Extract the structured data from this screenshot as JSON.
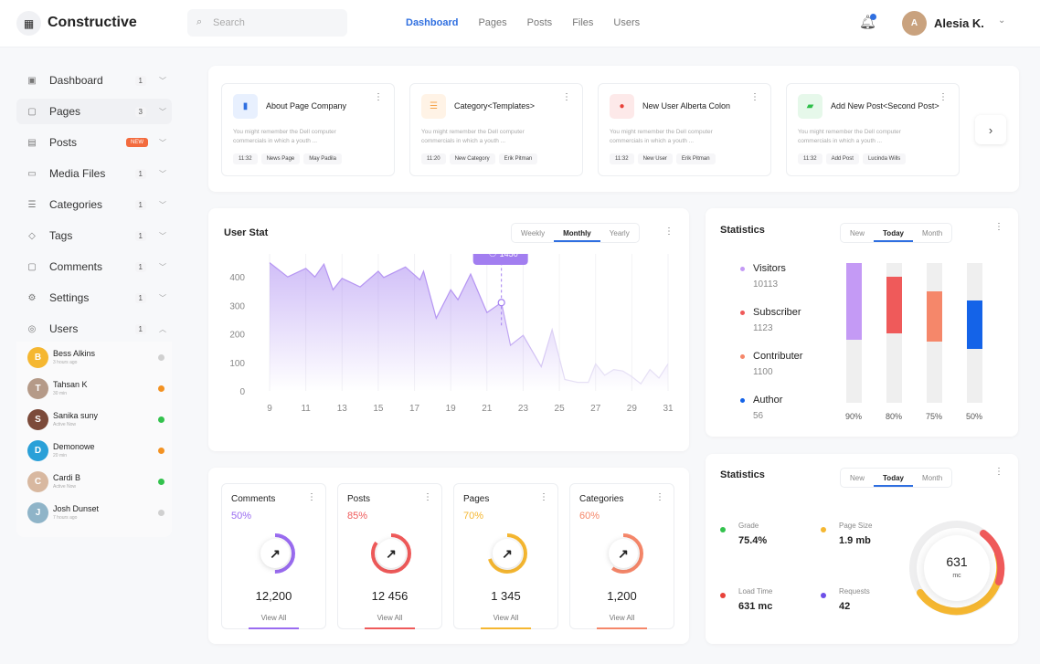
{
  "header": {
    "brand": "Constructive",
    "search_placeholder": "Search",
    "nav": [
      "Dashboard",
      "Pages",
      "Posts",
      "Files",
      "Users"
    ],
    "active_nav": "Dashboard",
    "user_name": "Alesia K."
  },
  "sidebar": {
    "items": [
      {
        "label": "Dashboard",
        "icon": "dashboard-icon",
        "count": "1"
      },
      {
        "label": "Pages",
        "icon": "pages-icon",
        "count": "3",
        "active": true
      },
      {
        "label": "Posts",
        "icon": "posts-icon",
        "badge": "NEW"
      },
      {
        "label": "Media Files",
        "icon": "media-icon",
        "count": "1"
      },
      {
        "label": "Categories",
        "icon": "categories-icon",
        "count": "1"
      },
      {
        "label": "Tags",
        "icon": "tag-icon",
        "count": "1"
      },
      {
        "label": "Comments",
        "icon": "comments-icon",
        "count": "1"
      },
      {
        "label": "Settings",
        "icon": "gear-icon",
        "count": "1"
      },
      {
        "label": "Users",
        "icon": "users-icon",
        "count": "1",
        "expanded": true
      }
    ],
    "users": [
      {
        "name": "Bess Alkins",
        "time": "3 hours ago",
        "status": "#d0d0d0",
        "avatar": "#f5b731"
      },
      {
        "name": "Tahsan K",
        "time": "30 min",
        "status": "#f39222",
        "avatar": "#b59a88"
      },
      {
        "name": "Sanika suny",
        "time": "Active Now",
        "status": "#33c24d",
        "avatar": "#7c4a3a"
      },
      {
        "name": "Demonowe",
        "time": "20 min",
        "status": "#f39222",
        "avatar": "#2aa0d8"
      },
      {
        "name": "Cardi B",
        "time": "Active Now",
        "status": "#33c24d",
        "avatar": "#d8b8a0"
      },
      {
        "name": "Josh Dunset",
        "time": "7 hours ago",
        "status": "#d0d0d0",
        "avatar": "#8fb4c8"
      }
    ]
  },
  "page_cards": [
    {
      "title": "About Page Company",
      "desc": "You might remember the Dell computer commercials in which a youth ...",
      "tags": [
        "11:32",
        "News Page",
        "May Padila"
      ],
      "icon_bg": "#e8f0fe",
      "icon_color": "#2f6fe0"
    },
    {
      "title": "Category<Templates>",
      "desc": "You might remember the Dell computer commercials in which a youth ...",
      "tags": [
        "11:20",
        "New Category",
        "Erik Pitman"
      ],
      "icon_bg": "#fff3e6",
      "icon_color": "#f5a34a"
    },
    {
      "title": "New User Alberta Colon",
      "desc": "You might remember the Dell computer commercials in which a youth ...",
      "tags": [
        "11:32",
        "New User",
        "Erik Pitman"
      ],
      "icon_bg": "#fde9e9",
      "icon_color": "#e8423a"
    },
    {
      "title": "Add New Post<Second Post>",
      "desc": "You might remember the Dell computer commercials in which a youth ...",
      "tags": [
        "11:32",
        "Add Post",
        "Lucinda Wills"
      ],
      "icon_bg": "#e6f8ea",
      "icon_color": "#2fbf4a"
    }
  ],
  "user_stat": {
    "title": "User Stat",
    "tabs": [
      "Weekly",
      "Monthly",
      "Yearly"
    ],
    "active_tab": "Monthly",
    "tooltip": "1450"
  },
  "chart_data": {
    "type": "area",
    "title": "User Stat",
    "xlim": [
      9,
      31
    ],
    "ylim": [
      0,
      500
    ],
    "xticks": [
      "9",
      "11",
      "13",
      "15",
      "17",
      "19",
      "21",
      "23",
      "25",
      "27",
      "29",
      "31"
    ],
    "yticks": [
      "500",
      "400",
      "300",
      "200",
      "100",
      "0"
    ],
    "x": [
      9,
      10,
      11,
      11.5,
      12,
      12.5,
      13,
      14,
      15,
      15.3,
      16.5,
      17.3,
      17.5,
      18.2,
      19,
      19.4,
      20.1,
      21,
      21.8,
      22.3,
      23,
      24,
      24.6,
      25.3,
      26,
      26.6,
      27,
      27.5,
      28,
      28.5,
      29,
      29.5,
      30,
      30.5,
      31
    ],
    "y": [
      450,
      400,
      430,
      400,
      445,
      355,
      395,
      365,
      420,
      398,
      435,
      390,
      420,
      255,
      355,
      320,
      410,
      275,
      310,
      160,
      195,
      85,
      215,
      40,
      30,
      30,
      95,
      55,
      75,
      70,
      50,
      25,
      75,
      45,
      95
    ],
    "highlight_x": 21.8,
    "color": "#a27ef0"
  },
  "statistics1": {
    "title": "Statistics",
    "tabs": [
      "New",
      "Today",
      "Month"
    ],
    "active_tab": "Today",
    "items": [
      {
        "name": "Visitors",
        "value": "10113",
        "color": "#c49af5",
        "pct": "90%",
        "fill": 0.55
      },
      {
        "name": "Subscriber",
        "value": "1123",
        "color": "#ef5a5a",
        "pct": "80%",
        "fill": 0.45
      },
      {
        "name": "Contributer",
        "value": "1100",
        "color": "#f5876a",
        "pct": "75%",
        "fill": 0.45
      },
      {
        "name": "Author",
        "value": "56",
        "color": "#1463e8",
        "pct": "50%",
        "fill": 0.47
      }
    ]
  },
  "statistics2": {
    "title": "Statistics",
    "tabs": [
      "New",
      "Today",
      "Month"
    ],
    "active_tab": "Today",
    "metrics": [
      {
        "name": "Grade",
        "value": "75.4%",
        "color": "#33c24d"
      },
      {
        "name": "Page Size",
        "value": "1.9 mb",
        "color": "#f5b731"
      },
      {
        "name": "Load Time",
        "value": "631 mc",
        "color": "#e8423a"
      },
      {
        "name": "Requests",
        "value": "42",
        "color": "#6d4fe8"
      }
    ],
    "gauge_value": "631",
    "gauge_unit": "mc"
  },
  "mini_cards": [
    {
      "title": "Comments",
      "pct": "50%",
      "fraction": 0.5,
      "value": "12,200",
      "link": "View All",
      "color": "#9a6cf0"
    },
    {
      "title": "Posts",
      "pct": "85%",
      "fraction": 0.85,
      "value": "12 456",
      "link": "View All",
      "color": "#ef5a5a"
    },
    {
      "title": "Pages",
      "pct": "70%",
      "fraction": 0.7,
      "value": "1 345",
      "link": "View All",
      "color": "#f5b731"
    },
    {
      "title": "Categories",
      "pct": "60%",
      "fraction": 0.6,
      "value": "1,200",
      "link": "View All",
      "color": "#f5876a"
    }
  ]
}
